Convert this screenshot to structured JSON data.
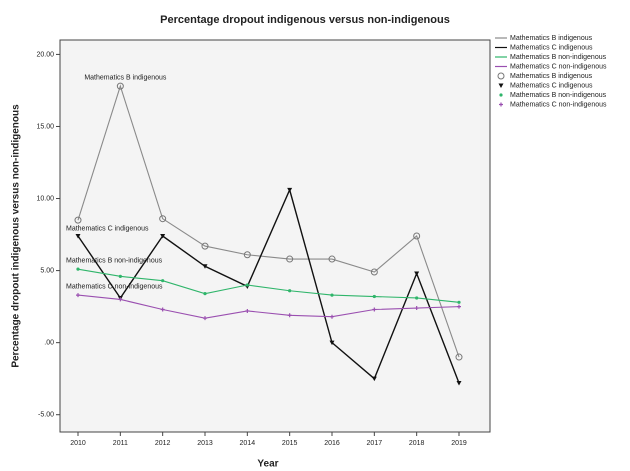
{
  "chart_data": {
    "type": "line",
    "title": "Percentage dropout indigenous versus non-indigenous",
    "xlabel": "Year",
    "ylabel": "Percentage dropout indigenous versus non-indigenous",
    "categories": [
      "2010",
      "2011",
      "2012",
      "2013",
      "2014",
      "2015",
      "2016",
      "2017",
      "2018",
      "2019"
    ],
    "ylim": [
      -6.2,
      21
    ],
    "yticks": [
      {
        "value": 20,
        "label": "20.00"
      },
      {
        "value": 15,
        "label": "15.00"
      },
      {
        "value": 10,
        "label": "10.00"
      },
      {
        "value": 5,
        "label": "5.00"
      },
      {
        "value": 0,
        "label": ".00"
      },
      {
        "value": -5,
        "label": "-5.00"
      }
    ],
    "grid": false,
    "series": [
      {
        "name": "Mathematics B indigenous",
        "color": "#8a8a8a",
        "label_color": "#5b6fc0",
        "marker": "open-circle",
        "marker_name": "Mathematics B indigenous",
        "values": [
          8.5,
          17.8,
          8.6,
          6.7,
          6.1,
          5.8,
          5.8,
          4.9,
          7.4,
          -1.0
        ]
      },
      {
        "name": "Mathematics C indigenous",
        "color": "#111111",
        "label_color": "#111111",
        "marker": "triangle",
        "marker_name": "Mathematics C indigenous",
        "values": [
          7.4,
          3.1,
          7.4,
          5.3,
          3.9,
          10.6,
          0.0,
          -2.5,
          4.8,
          -2.8
        ]
      },
      {
        "name": "Mathematics B non-indigenous",
        "color": "#2fb56a",
        "label_color": "#2fb56a",
        "marker": "dot",
        "marker_name": "Mathematics B non-indigenous",
        "values": [
          5.1,
          4.6,
          4.3,
          3.4,
          4.0,
          3.6,
          3.3,
          3.2,
          3.1,
          2.8
        ]
      },
      {
        "name": "Mathematics C non-indigenous",
        "color": "#9a4fb0",
        "label_color": "#9a4fb0",
        "marker": "star",
        "marker_name": "Mathematics C non-indigenous",
        "values": [
          3.3,
          3.0,
          2.3,
          1.7,
          2.2,
          1.9,
          1.8,
          2.3,
          2.4,
          2.5
        ]
      }
    ]
  }
}
